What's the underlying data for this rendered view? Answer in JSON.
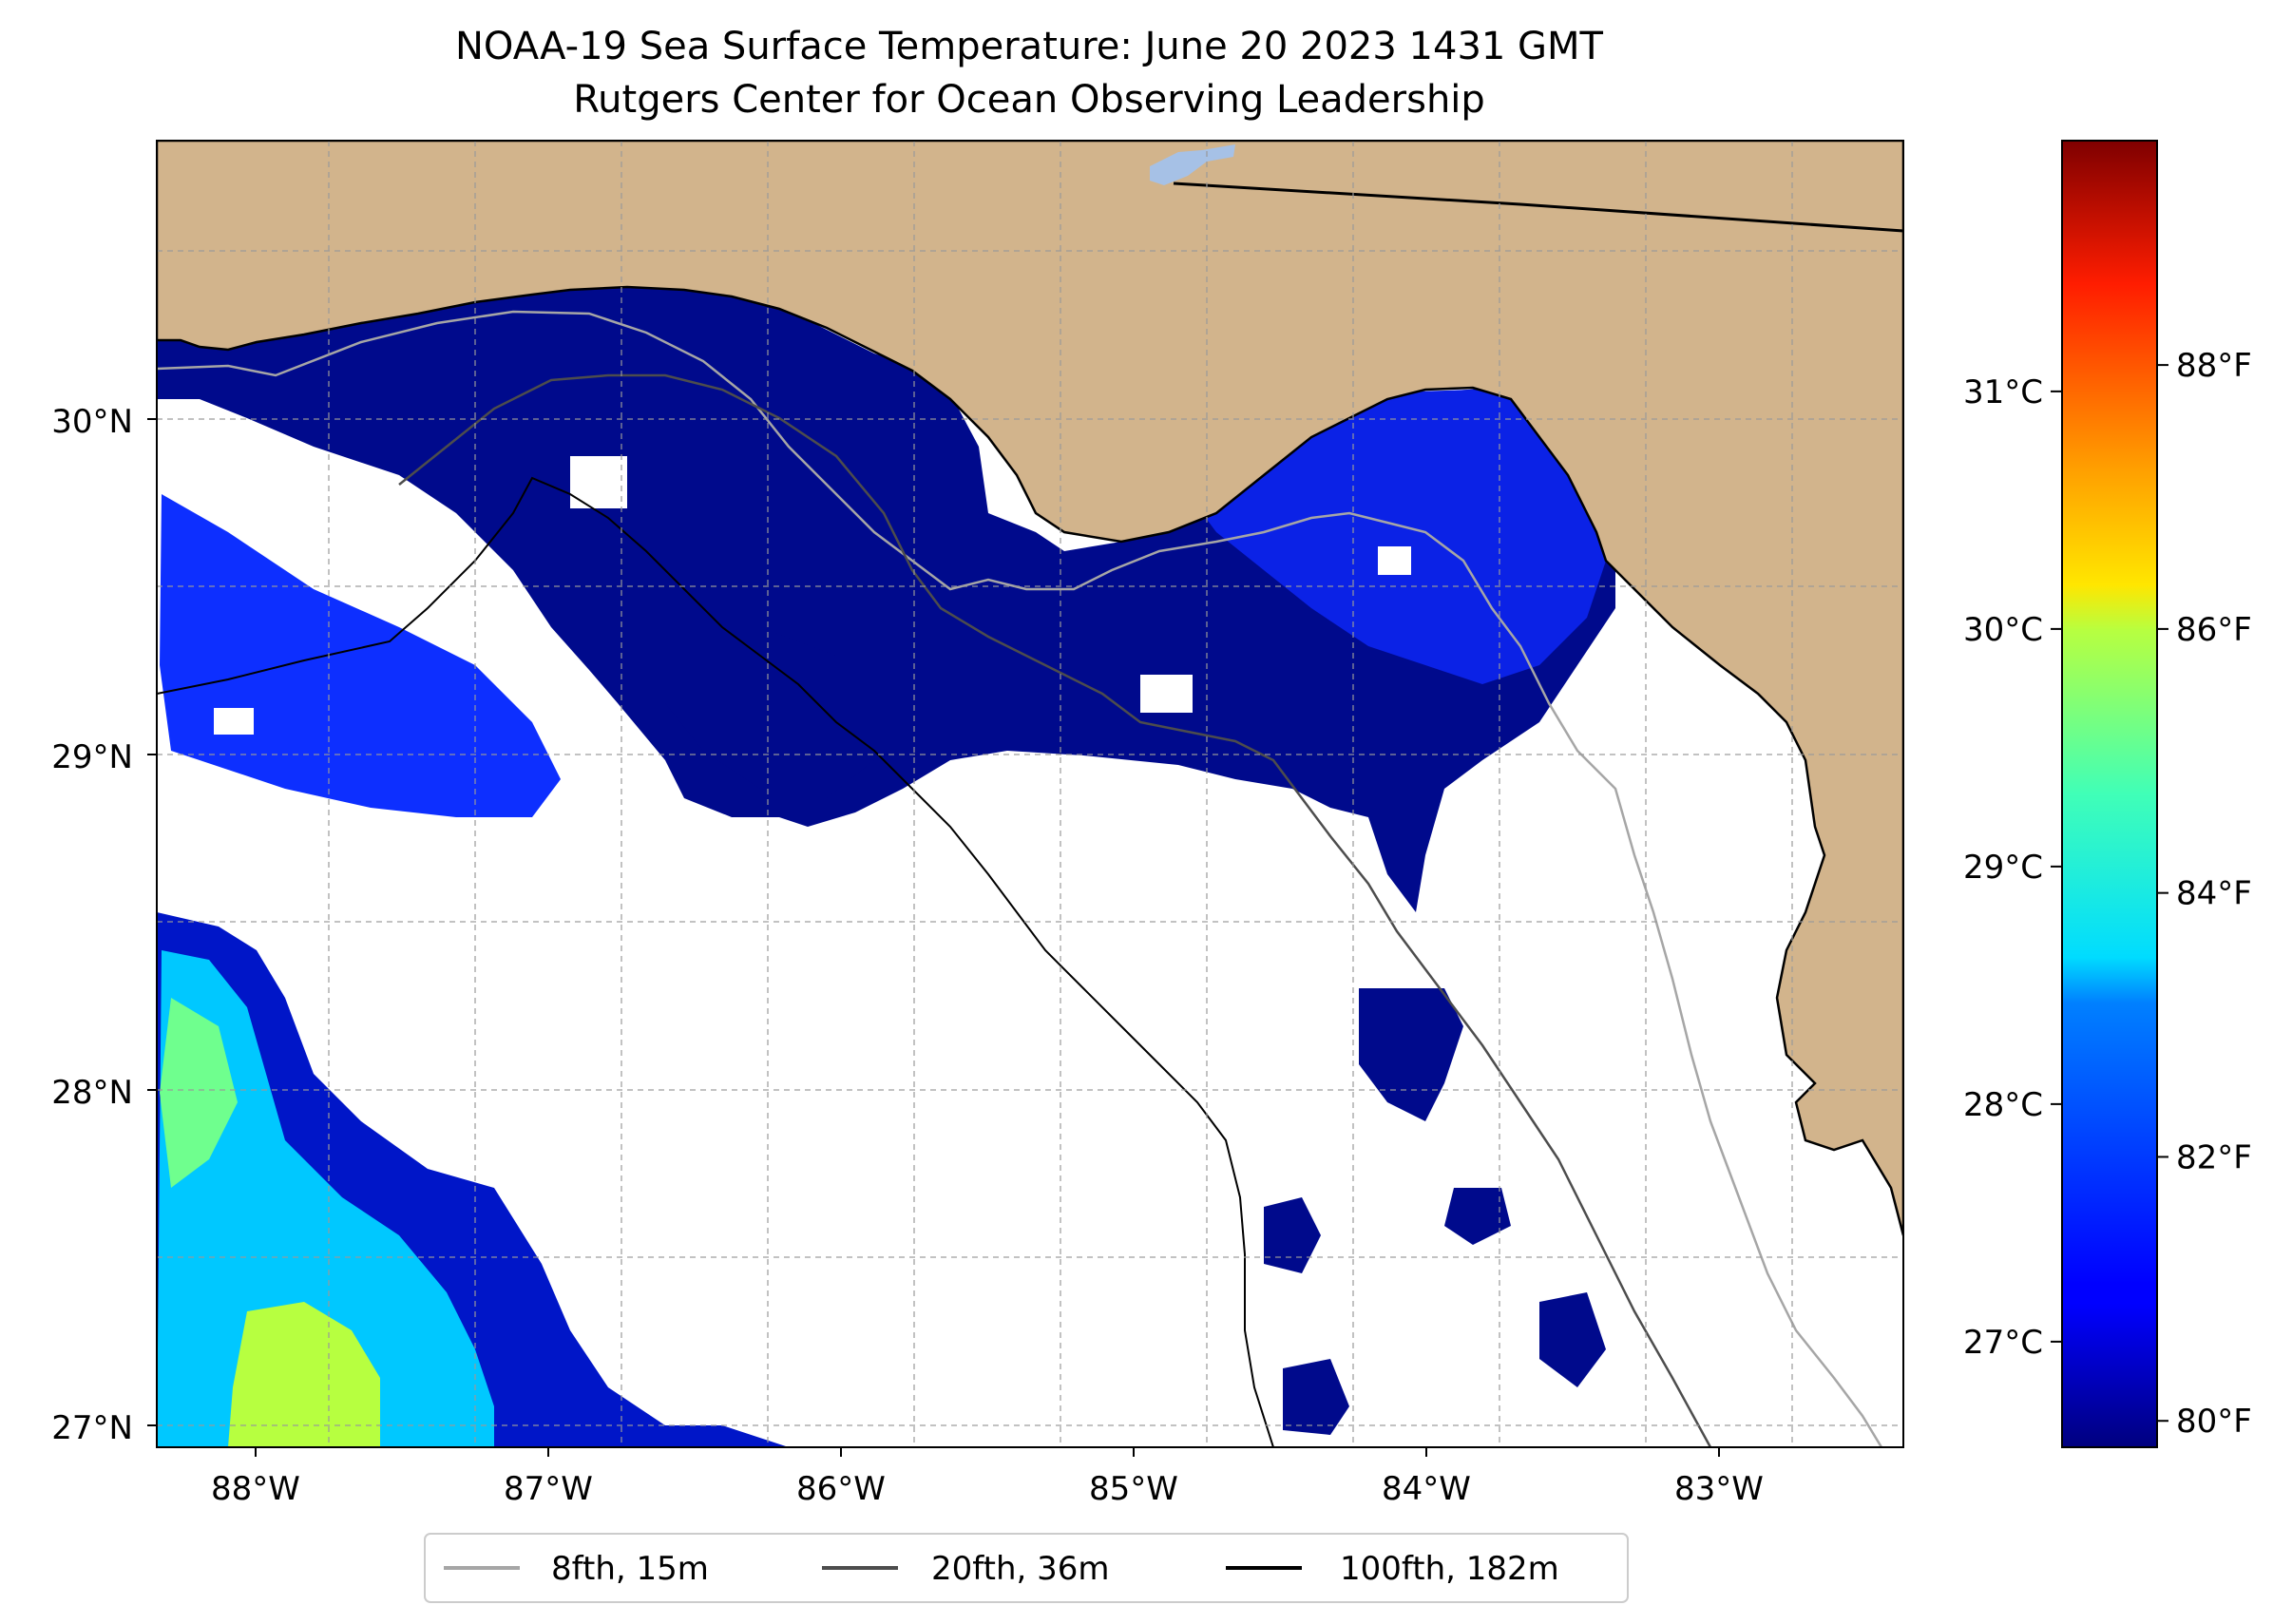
{
  "title": {
    "line1": "NOAA-19 Sea Surface Temperature: June 20 2023 1431 GMT",
    "line2": "Rutgers Center for Ocean Observing Leadership"
  },
  "map": {
    "lon_range": [
      -88.33,
      -82.37
    ],
    "lat_range": [
      26.93,
      30.83
    ],
    "land_color": "#d2b48c",
    "lake_color": "#a6c1e6",
    "lat_ticks": [
      {
        "value": 27,
        "label": "27°N"
      },
      {
        "value": 28,
        "label": "28°N"
      },
      {
        "value": 29,
        "label": "29°N"
      },
      {
        "value": 30,
        "label": "30°N"
      }
    ],
    "lon_ticks": [
      {
        "value": -88,
        "label": "88°W"
      },
      {
        "value": -87,
        "label": "87°W"
      },
      {
        "value": -86,
        "label": "86°W"
      },
      {
        "value": -85,
        "label": "85°W"
      },
      {
        "value": -84,
        "label": "84°W"
      },
      {
        "value": -83,
        "label": "83°W"
      }
    ]
  },
  "legend": {
    "items": [
      {
        "label": "8fth, 15m",
        "color": "#a6a6a6"
      },
      {
        "label": "20fth, 36m",
        "color": "#4d4d4d"
      },
      {
        "label": "100fth, 182m",
        "color": "#000000"
      }
    ]
  },
  "colorbar": {
    "cmap": "jet",
    "range_f": [
      79.8,
      89.7
    ],
    "celsius_ticks": [
      {
        "value": 27,
        "label": "27°C"
      },
      {
        "value": 28,
        "label": "28°C"
      },
      {
        "value": 29,
        "label": "29°C"
      },
      {
        "value": 30,
        "label": "30°C"
      },
      {
        "value": 31,
        "label": "31°C"
      }
    ],
    "fahrenheit_ticks": [
      {
        "value": 80,
        "label": "80°F"
      },
      {
        "value": 82,
        "label": "82°F"
      },
      {
        "value": 84,
        "label": "84°F"
      },
      {
        "value": 86,
        "label": "86°F"
      },
      {
        "value": 88,
        "label": "88°F"
      }
    ]
  }
}
